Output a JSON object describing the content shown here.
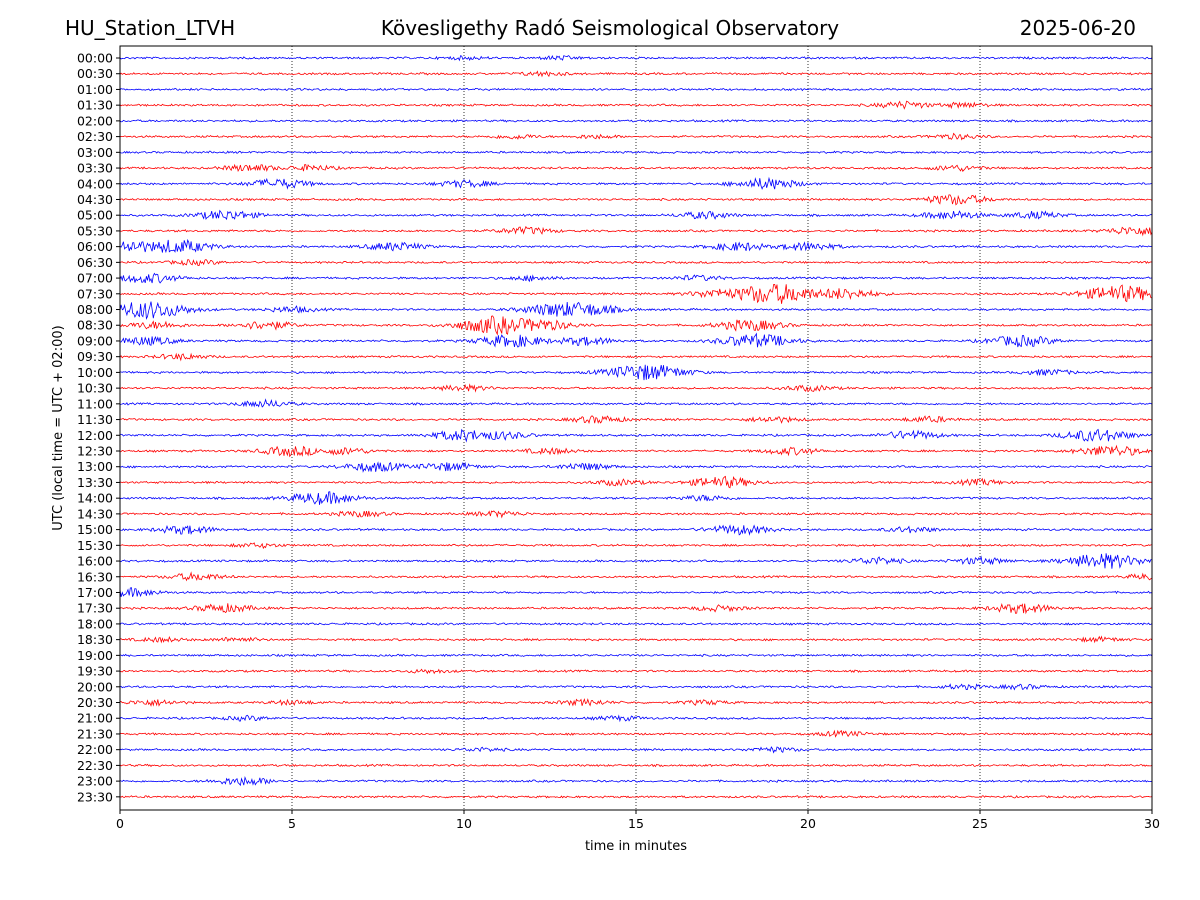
{
  "header": {
    "station": "HU_Station_LTVH",
    "observatory": "Kövesligethy Radó Seismological Observatory",
    "date": "2025-06-20"
  },
  "colors": {
    "even_trace": "#0000ff",
    "odd_trace": "#ff0000",
    "axis": "#000000",
    "grid": "#000000"
  },
  "chart_data": {
    "type": "line",
    "title": "Kövesligethy Radó Seismological Observatory",
    "xlabel": "time in minutes",
    "ylabel": "UTC (local time = UTC + 02:00)",
    "xlim": [
      0,
      30
    ],
    "x_ticks": [
      "0",
      "5",
      "10",
      "15",
      "20",
      "25",
      "30"
    ],
    "x_tick_values": [
      0,
      5,
      10,
      15,
      20,
      25,
      30
    ],
    "grid": "vertical dotted at x ticks",
    "traces": [
      {
        "label": "00:00",
        "color": "blue",
        "events": [
          [
            10,
            0.4
          ],
          [
            12.8,
            0.5
          ]
        ]
      },
      {
        "label": "00:30",
        "color": "red",
        "events": [
          [
            12.3,
            0.6
          ]
        ]
      },
      {
        "label": "01:00",
        "color": "blue",
        "events": []
      },
      {
        "label": "01:30",
        "color": "red",
        "events": [
          [
            22.8,
            1.0
          ],
          [
            24.5,
            0.7
          ]
        ]
      },
      {
        "label": "02:00",
        "color": "blue",
        "events": []
      },
      {
        "label": "02:30",
        "color": "red",
        "events": [
          [
            11.5,
            0.6
          ],
          [
            13.8,
            0.5
          ],
          [
            24.3,
            0.7
          ]
        ]
      },
      {
        "label": "03:00",
        "color": "blue",
        "events": []
      },
      {
        "label": "03:30",
        "color": "red",
        "events": [
          [
            3.8,
            1.0
          ],
          [
            5.5,
            0.8
          ],
          [
            24.3,
            0.8
          ]
        ]
      },
      {
        "label": "04:00",
        "color": "blue",
        "events": [
          [
            4.6,
            1.4
          ],
          [
            10.0,
            1.0
          ],
          [
            18.8,
            1.6
          ]
        ]
      },
      {
        "label": "04:30",
        "color": "red",
        "events": [
          [
            24.3,
            1.5
          ]
        ]
      },
      {
        "label": "05:00",
        "color": "blue",
        "events": [
          [
            3.1,
            1.4
          ],
          [
            17.0,
            1.0
          ],
          [
            24.2,
            1.2
          ],
          [
            26.6,
            1.0
          ]
        ]
      },
      {
        "label": "05:30",
        "color": "red",
        "events": [
          [
            11.8,
            1.0
          ],
          [
            29.5,
            1.2
          ]
        ]
      },
      {
        "label": "06:00",
        "color": "blue",
        "events": [
          [
            0.3,
            1.8
          ],
          [
            1.6,
            2.0
          ],
          [
            8.0,
            1.2
          ],
          [
            18.0,
            1.2
          ],
          [
            20.0,
            1.2
          ]
        ]
      },
      {
        "label": "06:30",
        "color": "red",
        "events": [
          [
            2.2,
            0.7
          ]
        ]
      },
      {
        "label": "07:00",
        "color": "blue",
        "events": [
          [
            0.8,
            1.4
          ],
          [
            12.0,
            0.7
          ],
          [
            16.8,
            0.7
          ]
        ]
      },
      {
        "label": "07:30",
        "color": "red",
        "events": [
          [
            19.0,
            3.0
          ],
          [
            17.5,
            1.4
          ],
          [
            21.0,
            1.6
          ],
          [
            29.1,
            2.4
          ]
        ]
      },
      {
        "label": "08:00",
        "color": "blue",
        "events": [
          [
            0.8,
            2.6
          ],
          [
            5.0,
            0.8
          ],
          [
            12.9,
            2.2
          ],
          [
            13.4,
            2.0
          ]
        ]
      },
      {
        "label": "08:30",
        "color": "red",
        "events": [
          [
            1.0,
            1.0
          ],
          [
            4.2,
            1.2
          ],
          [
            11.0,
            2.6
          ],
          [
            12.1,
            1.8
          ],
          [
            18.3,
            1.6
          ]
        ]
      },
      {
        "label": "09:00",
        "color": "blue",
        "events": [
          [
            0.8,
            1.2
          ],
          [
            11.4,
            1.8
          ],
          [
            13.5,
            1.2
          ],
          [
            18.5,
            2.0
          ],
          [
            26.2,
            1.6
          ]
        ]
      },
      {
        "label": "09:30",
        "color": "red",
        "events": [
          [
            1.8,
            0.8
          ]
        ]
      },
      {
        "label": "10:00",
        "color": "blue",
        "events": [
          [
            15.3,
            2.4
          ],
          [
            27.0,
            0.8
          ]
        ]
      },
      {
        "label": "10:30",
        "color": "red",
        "events": [
          [
            10.0,
            0.8
          ],
          [
            20.0,
            0.8
          ]
        ]
      },
      {
        "label": "11:00",
        "color": "blue",
        "events": [
          [
            4.2,
            1.0
          ]
        ]
      },
      {
        "label": "11:30",
        "color": "red",
        "events": [
          [
            13.9,
            1.0
          ],
          [
            19.0,
            0.8
          ],
          [
            23.5,
            0.8
          ]
        ]
      },
      {
        "label": "12:00",
        "color": "blue",
        "events": [
          [
            10.0,
            1.6
          ],
          [
            11.0,
            1.2
          ],
          [
            23.0,
            1.2
          ],
          [
            28.4,
            1.8
          ]
        ]
      },
      {
        "label": "12:30",
        "color": "red",
        "events": [
          [
            5.0,
            1.4
          ],
          [
            6.5,
            1.0
          ],
          [
            12.5,
            0.8
          ],
          [
            19.5,
            1.0
          ],
          [
            28.8,
            1.6
          ]
        ]
      },
      {
        "label": "13:00",
        "color": "blue",
        "events": [
          [
            7.4,
            1.4
          ],
          [
            9.5,
            1.2
          ],
          [
            13.5,
            1.0
          ]
        ]
      },
      {
        "label": "13:30",
        "color": "red",
        "events": [
          [
            14.5,
            0.8
          ],
          [
            17.5,
            1.6
          ],
          [
            25.0,
            0.8
          ]
        ]
      },
      {
        "label": "14:00",
        "color": "blue",
        "events": [
          [
            5.9,
            1.8
          ],
          [
            17.0,
            0.8
          ]
        ]
      },
      {
        "label": "14:30",
        "color": "red",
        "events": [
          [
            7.0,
            0.8
          ],
          [
            11.0,
            0.8
          ]
        ]
      },
      {
        "label": "15:00",
        "color": "blue",
        "events": [
          [
            1.9,
            1.2
          ],
          [
            18.0,
            1.4
          ],
          [
            23.0,
            0.8
          ]
        ]
      },
      {
        "label": "15:30",
        "color": "red",
        "events": [
          [
            4.0,
            0.6
          ]
        ]
      },
      {
        "label": "16:00",
        "color": "blue",
        "events": [
          [
            22.0,
            1.0
          ],
          [
            25.0,
            1.0
          ],
          [
            28.6,
            2.2
          ]
        ]
      },
      {
        "label": "16:30",
        "color": "red",
        "events": [
          [
            2.2,
            1.0
          ],
          [
            30.0,
            0.8
          ]
        ]
      },
      {
        "label": "17:00",
        "color": "blue",
        "events": [
          [
            0.3,
            1.2
          ]
        ]
      },
      {
        "label": "17:30",
        "color": "red",
        "events": [
          [
            3.0,
            1.2
          ],
          [
            17.4,
            0.8
          ],
          [
            26.2,
            1.4
          ]
        ]
      },
      {
        "label": "18:00",
        "color": "blue",
        "events": []
      },
      {
        "label": "18:30",
        "color": "red",
        "events": [
          [
            1.2,
            0.6
          ],
          [
            3.4,
            0.6
          ],
          [
            28.5,
            0.6
          ]
        ]
      },
      {
        "label": "19:00",
        "color": "blue",
        "events": []
      },
      {
        "label": "19:30",
        "color": "red",
        "events": [
          [
            9.0,
            0.5
          ]
        ]
      },
      {
        "label": "20:00",
        "color": "blue",
        "events": [
          [
            24.5,
            0.6
          ],
          [
            26.2,
            0.6
          ]
        ]
      },
      {
        "label": "20:30",
        "color": "red",
        "events": [
          [
            1.0,
            0.8
          ],
          [
            5.0,
            0.6
          ],
          [
            13.5,
            0.8
          ],
          [
            17.0,
            0.6
          ]
        ]
      },
      {
        "label": "21:00",
        "color": "blue",
        "events": [
          [
            3.7,
            0.6
          ],
          [
            14.5,
            0.6
          ]
        ]
      },
      {
        "label": "21:30",
        "color": "red",
        "events": [
          [
            21.0,
            0.7
          ]
        ]
      },
      {
        "label": "22:00",
        "color": "blue",
        "events": [
          [
            10.5,
            0.5
          ],
          [
            19.0,
            0.7
          ]
        ]
      },
      {
        "label": "22:30",
        "color": "red",
        "events": []
      },
      {
        "label": "23:00",
        "color": "blue",
        "events": [
          [
            3.6,
            1.2
          ]
        ]
      },
      {
        "label": "23:30",
        "color": "red",
        "events": []
      }
    ]
  }
}
